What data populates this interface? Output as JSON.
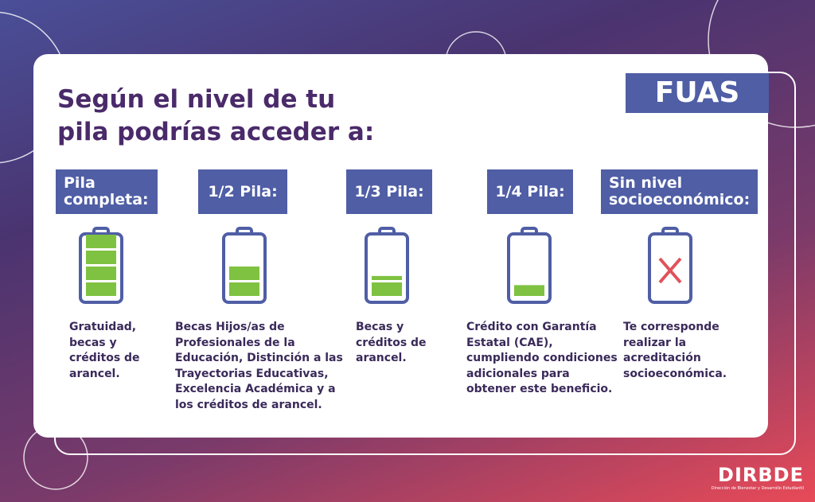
{
  "title": [
    "Según el nivel de tu",
    "pila podrías acceder a:"
  ],
  "badge": "FUAS",
  "columns": [
    {
      "header": [
        "Pila",
        "completa:"
      ],
      "description": [
        "Gratuidad,",
        "becas y",
        "créditos de",
        "arancel."
      ]
    },
    {
      "header": [
        "1/2 Pila:"
      ],
      "description": [
        "Becas Hijos/as de",
        "Profesionales de la",
        "Educación, Distinción a las",
        "Trayectorias Educativas,",
        "Excelencia Académica y a",
        "los créditos de arancel."
      ]
    },
    {
      "header": [
        "1/3 Pila:"
      ],
      "description": [
        "Becas y",
        "créditos de",
        "arancel."
      ]
    },
    {
      "header": [
        "1/4 Pila:"
      ],
      "description": [
        "Crédito con Garantía",
        "Estatal (CAE),",
        "cumpliendo condiciones",
        "adicionales para",
        "obtener este beneficio."
      ]
    },
    {
      "header": [
        "Sin nivel",
        "socioeconómico:"
      ],
      "description": [
        "Te corresponde",
        "realizar la",
        "acreditación",
        "socioeconómica."
      ]
    }
  ],
  "logo": {
    "text": "DIRBDE",
    "subtitle": "Dirección de Bienestar y Desarrollo Estudiantil"
  }
}
